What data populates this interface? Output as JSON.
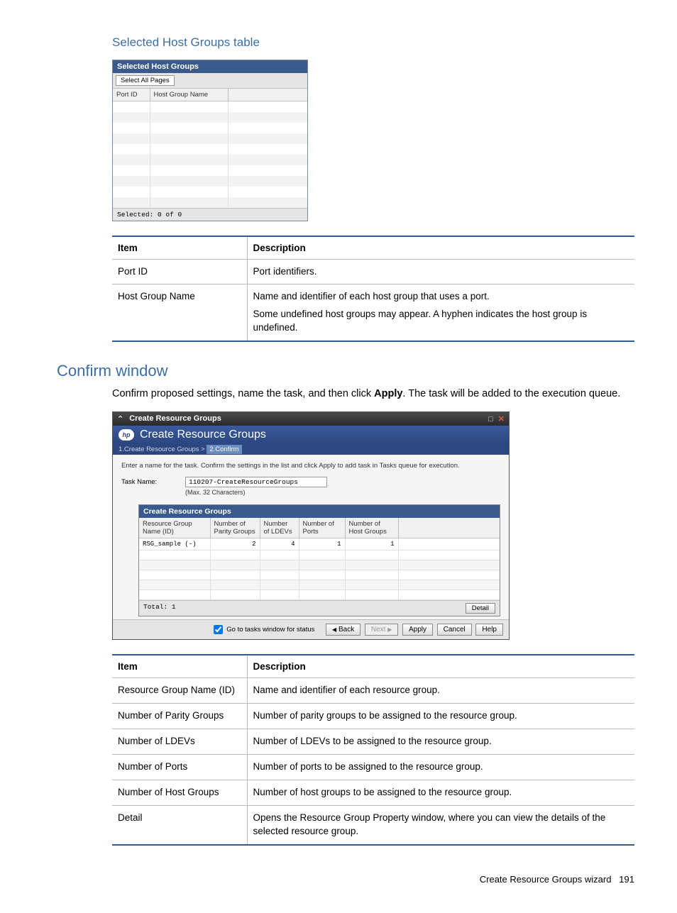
{
  "page": {
    "footer_text": "Create Resource Groups wizard",
    "page_number": "191"
  },
  "section1": {
    "heading": "Selected Host Groups table",
    "screenshot": {
      "title": "Selected Host Groups",
      "select_all_btn": "Select All Pages",
      "columns": [
        "Port ID",
        "Host Group Name",
        ""
      ],
      "empty_rows": 10,
      "footer": "Selected:  0   of  0",
      "header_bg": "#3a5a8c",
      "alt_row_bg": "#f3f3f3"
    },
    "doc_table": {
      "headers": [
        "Item",
        "Description"
      ],
      "col_widths": [
        "190px",
        "auto"
      ],
      "rows": [
        [
          "Port ID",
          "Port identifiers."
        ],
        [
          "Host Group Name",
          "Name and identifier of each host group that uses a port.\nSome undefined host groups may appear. A hyphen indicates the host group is undefined."
        ]
      ]
    }
  },
  "section2": {
    "heading": "Confirm window",
    "intro_pre": "Confirm proposed settings, name the task, and then click ",
    "intro_bold": "Apply",
    "intro_post": ". The task will be added to the execution queue.",
    "screenshot": {
      "topbar_title": "Create Resource Groups",
      "header_title": "Create Resource Groups",
      "breadcrumb_step1": "1.Create Resource Groups  >",
      "breadcrumb_step2": "2.Confirm",
      "instruction": "Enter a name for the task. Confirm the settings in the list and click Apply to add task in Tasks queue for execution.",
      "task_name_label": "Task Name:",
      "task_name_value": "110207-CreateResourceGroups",
      "task_name_hint": "(Max. 32 Characters)",
      "inner": {
        "title": "Create Resource Groups",
        "columns": [
          "Resource Group\nName (ID)",
          "Number of\nParity Groups",
          "Number\nof LDEVs",
          "Number of\nPorts",
          "Number of\nHost Groups",
          ""
        ],
        "row": {
          "name": "RSG_sample (-)",
          "parity": "2",
          "ldevs": "4",
          "ports": "1",
          "hostgroups": "1"
        },
        "empty_rows": 5,
        "footer_total": "Total:  1",
        "detail_btn": "Detail"
      },
      "buttons": {
        "checkbox_label": "Go to tasks window for status",
        "back": "Back",
        "next": "Next",
        "apply": "Apply",
        "cancel": "Cancel",
        "help": "Help"
      }
    },
    "doc_table": {
      "headers": [
        "Item",
        "Description"
      ],
      "col_widths": [
        "190px",
        "auto"
      ],
      "rows": [
        [
          "Resource Group Name (ID)",
          "Name and identifier of each resource group."
        ],
        [
          "Number of Parity Groups",
          "Number of parity groups to be assigned to the resource group."
        ],
        [
          "Number of LDEVs",
          "Number of LDEVs to be assigned to the resource group."
        ],
        [
          "Number of Ports",
          "Number of ports to be assigned to the resource group."
        ],
        [
          "Number of Host Groups",
          "Number of host groups to be assigned to the resource group."
        ],
        [
          "Detail",
          "Opens the Resource Group Property window, where you can view the details of the selected resource group."
        ]
      ]
    }
  }
}
